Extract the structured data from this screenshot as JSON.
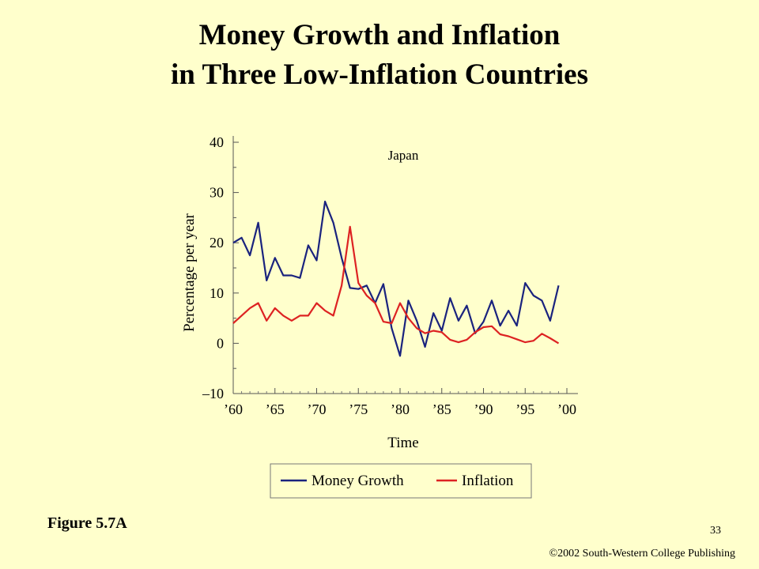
{
  "slide": {
    "title_line1": "Money Growth and Inflation",
    "title_line2": "in Three Low-Inflation Countries",
    "figure_label": "Figure 5.7A",
    "page_number": "33",
    "copyright": "©2002 South-Western College Publishing"
  },
  "chart_data": {
    "type": "line",
    "title": "Japan",
    "xlabel": "Time",
    "ylabel": "Percentage per year",
    "xlim": [
      1960,
      2000
    ],
    "ylim": [
      -10,
      40
    ],
    "x_ticks": [
      1960,
      1965,
      1970,
      1975,
      1980,
      1985,
      1990,
      1995,
      2000
    ],
    "x_tick_labels": [
      "’60",
      "’65",
      "’70",
      "’75",
      "’80",
      "’85",
      "’90",
      "’95",
      "’00"
    ],
    "y_ticks": [
      -10,
      0,
      10,
      20,
      30,
      40
    ],
    "y_tick_labels": [
      "–10",
      "0",
      "10",
      "20",
      "30",
      "40"
    ],
    "grid": false,
    "legend_position": "bottom",
    "x": [
      1960,
      1961,
      1962,
      1963,
      1964,
      1965,
      1966,
      1967,
      1968,
      1969,
      1970,
      1971,
      1972,
      1973,
      1974,
      1975,
      1976,
      1977,
      1978,
      1979,
      1980,
      1981,
      1982,
      1983,
      1984,
      1985,
      1986,
      1987,
      1988,
      1989,
      1990,
      1991,
      1992,
      1993,
      1994,
      1995,
      1996,
      1997,
      1998,
      1999
    ],
    "series": [
      {
        "name": "Money Growth",
        "color": "#1a237e",
        "values": [
          20,
          21,
          17.5,
          24,
          12.5,
          17,
          13.5,
          13.5,
          13,
          19.5,
          16.5,
          28.2,
          24,
          17,
          11,
          10.8,
          11.5,
          8,
          11.8,
          3,
          -2.5,
          8.5,
          4.5,
          -0.7,
          6,
          2.5,
          9,
          4.5,
          7.5,
          2,
          4.3,
          8.5,
          3.5,
          6.5,
          3.5,
          12,
          9.5,
          8.5,
          4.5,
          11.5
        ]
      },
      {
        "name": "Inflation",
        "color": "#dd2222",
        "values": [
          4,
          5.5,
          7,
          8,
          4.5,
          7,
          5.5,
          4.5,
          5.5,
          5.5,
          8,
          6.5,
          5.5,
          11.5,
          23.2,
          12,
          9.5,
          8,
          4.3,
          4,
          8,
          5,
          3,
          2,
          2.5,
          2.2,
          0.7,
          0.2,
          0.7,
          2.2,
          3.2,
          3.4,
          1.8,
          1.4,
          0.8,
          0.2,
          0.5,
          1.9,
          1,
          0
        ]
      }
    ]
  }
}
